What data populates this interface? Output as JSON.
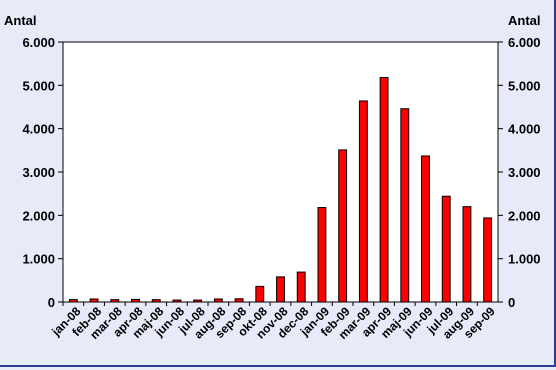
{
  "chart_data": {
    "type": "bar",
    "categories": [
      "jan-08",
      "feb-08",
      "mar-08",
      "apr-08",
      "maj-08",
      "jun-08",
      "jul-08",
      "aug-08",
      "sep-08",
      "okt-08",
      "nov-08",
      "dec-08",
      "jan-09",
      "feb-09",
      "mar-09",
      "apr-09",
      "maj-09",
      "jun-09",
      "jul-09",
      "aug-09",
      "sep-09"
    ],
    "values": [
      55,
      70,
      55,
      60,
      55,
      45,
      45,
      70,
      75,
      360,
      580,
      690,
      2180,
      3510,
      4640,
      5180,
      4460,
      3370,
      2440,
      2200,
      1940
    ],
    "y_left_label": "Antal",
    "y_right_label": "Antal",
    "ylim": [
      0,
      6000
    ],
    "yticks": [
      0,
      1000,
      2000,
      3000,
      4000,
      5000,
      6000
    ],
    "ytick_labels": [
      "0",
      "1.000",
      "2.000",
      "3.000",
      "4.000",
      "5.000",
      "6.000"
    ],
    "bar_color": "#ff0000",
    "bar_edge_color": "#000000",
    "plot_background": "#ffffff",
    "page_background": "#e7eaf9",
    "grid": false,
    "legend": false
  }
}
